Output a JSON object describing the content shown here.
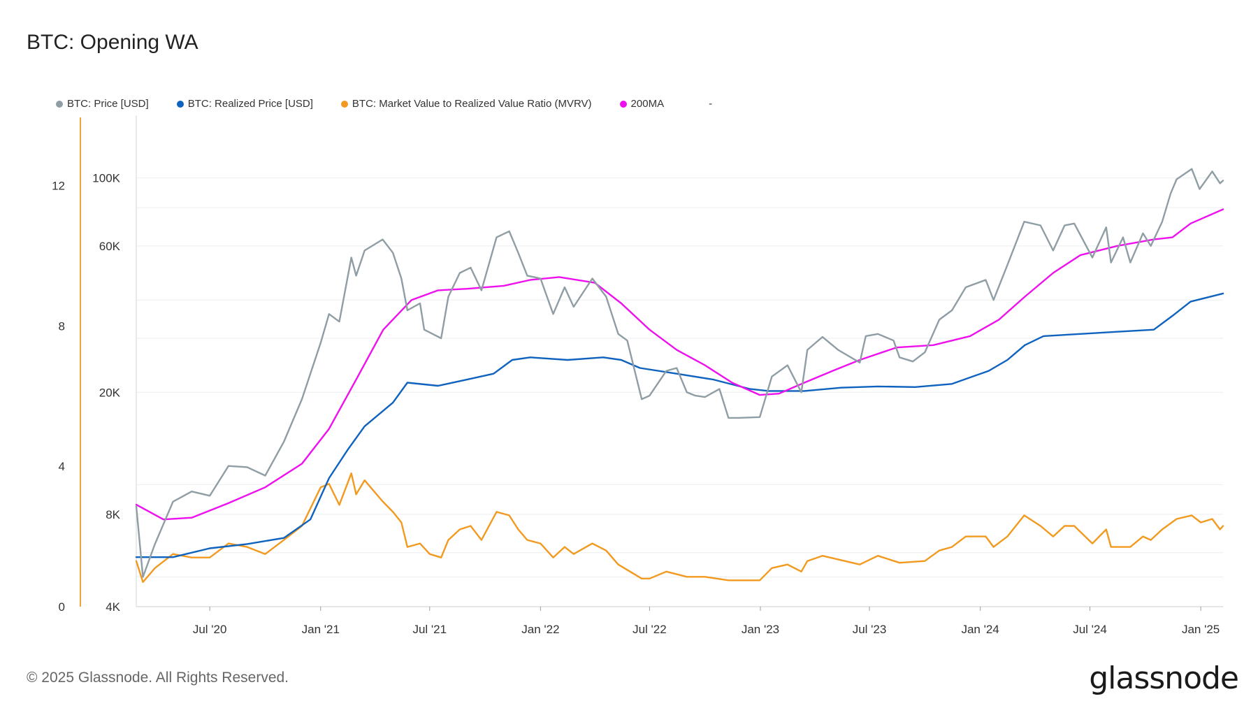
{
  "title": "BTC: Opening WA",
  "legend": [
    {
      "label": "BTC: Price [USD]",
      "color": "#8f9da4"
    },
    {
      "label": "BTC: Realized Price [USD]",
      "color": "#0f62be"
    },
    {
      "label": "BTC: Market Value to Realized Value Ratio (MVRV)",
      "color": "#f29a1f"
    },
    {
      "label": "200MA",
      "color": "#ee11ee"
    }
  ],
  "legend_extra": "-",
  "footer": "© 2025 Glassnode. All Rights Reserved.",
  "logo": "glassnode",
  "chart_data": {
    "type": "line",
    "title": "BTC: Opening WA",
    "x_tick_labels": [
      "Jul '20",
      "Jan '21",
      "Jul '21",
      "Jan '22",
      "Jul '22",
      "Jan '23",
      "Jul '23",
      "Jan '24",
      "Jul '24",
      "Jan '25"
    ],
    "x_tick_dates": [
      "2020-07-01",
      "2021-01-01",
      "2021-07-01",
      "2022-01-01",
      "2022-07-01",
      "2023-01-01",
      "2023-07-01",
      "2024-01-01",
      "2024-07-01",
      "2025-01-01"
    ],
    "x_range": [
      "2020-03-01",
      "2025-02-07"
    ],
    "y_left": {
      "label": "",
      "ticks": [
        "0",
        "4",
        "8",
        "12"
      ],
      "range": [
        0,
        14
      ],
      "scale": "linear",
      "series": [
        "BTC: Market Value to Realized Value Ratio (MVRV)"
      ]
    },
    "y_right": {
      "label": "",
      "ticks": [
        "4K",
        "8K",
        "20K",
        "60K",
        "100K"
      ],
      "range": [
        4000,
        160000
      ],
      "scale": "log",
      "series": [
        "BTC: Price [USD]",
        "BTC: Realized Price [USD]",
        "200MA"
      ]
    },
    "grid": true,
    "legend_position": "top-left",
    "series": [
      {
        "name": "BTC: Price [USD]",
        "color": "#8f9da4",
        "axis": "right",
        "points": [
          [
            "2020-03-01",
            8500
          ],
          [
            "2020-03-12",
            5000
          ],
          [
            "2020-04-01",
            6400
          ],
          [
            "2020-05-01",
            8800
          ],
          [
            "2020-06-01",
            9500
          ],
          [
            "2020-07-01",
            9200
          ],
          [
            "2020-08-01",
            11500
          ],
          [
            "2020-09-01",
            11400
          ],
          [
            "2020-10-01",
            10700
          ],
          [
            "2020-11-01",
            13800
          ],
          [
            "2020-12-01",
            19000
          ],
          [
            "2021-01-01",
            29000
          ],
          [
            "2021-01-15",
            36000
          ],
          [
            "2021-02-01",
            34000
          ],
          [
            "2021-02-21",
            55000
          ],
          [
            "2021-03-01",
            48000
          ],
          [
            "2021-03-15",
            58000
          ],
          [
            "2021-04-14",
            63000
          ],
          [
            "2021-05-01",
            57000
          ],
          [
            "2021-05-15",
            47000
          ],
          [
            "2021-05-25",
            37000
          ],
          [
            "2021-06-15",
            39000
          ],
          [
            "2021-06-22",
            32000
          ],
          [
            "2021-07-20",
            30000
          ],
          [
            "2021-08-01",
            41000
          ],
          [
            "2021-08-20",
            49000
          ],
          [
            "2021-09-07",
            51000
          ],
          [
            "2021-09-25",
            43000
          ],
          [
            "2021-10-20",
            64000
          ],
          [
            "2021-11-10",
            67000
          ],
          [
            "2021-11-25",
            57000
          ],
          [
            "2021-12-10",
            48000
          ],
          [
            "2022-01-01",
            47000
          ],
          [
            "2022-01-22",
            36000
          ],
          [
            "2022-02-10",
            44000
          ],
          [
            "2022-02-25",
            38000
          ],
          [
            "2022-03-28",
            47000
          ],
          [
            "2022-04-20",
            41000
          ],
          [
            "2022-05-10",
            31000
          ],
          [
            "2022-05-25",
            29500
          ],
          [
            "2022-06-18",
            19000
          ],
          [
            "2022-07-01",
            19500
          ],
          [
            "2022-07-29",
            23500
          ],
          [
            "2022-08-15",
            24000
          ],
          [
            "2022-09-01",
            20000
          ],
          [
            "2022-09-15",
            19500
          ],
          [
            "2022-10-01",
            19300
          ],
          [
            "2022-10-25",
            20500
          ],
          [
            "2022-11-09",
            16500
          ],
          [
            "2022-11-25",
            16500
          ],
          [
            "2022-12-31",
            16600
          ],
          [
            "2023-01-20",
            22500
          ],
          [
            "2023-02-15",
            24500
          ],
          [
            "2023-03-10",
            20000
          ],
          [
            "2023-03-20",
            27500
          ],
          [
            "2023-04-14",
            30300
          ],
          [
            "2023-05-10",
            27500
          ],
          [
            "2023-06-15",
            25000
          ],
          [
            "2023-06-25",
            30500
          ],
          [
            "2023-07-15",
            31000
          ],
          [
            "2023-08-10",
            29500
          ],
          [
            "2023-08-20",
            26000
          ],
          [
            "2023-09-11",
            25200
          ],
          [
            "2023-10-01",
            27000
          ],
          [
            "2023-10-25",
            34500
          ],
          [
            "2023-11-15",
            37000
          ],
          [
            "2023-12-08",
            44000
          ],
          [
            "2024-01-10",
            46500
          ],
          [
            "2024-01-23",
            40000
          ],
          [
            "2024-02-15",
            52000
          ],
          [
            "2024-03-14",
            72000
          ],
          [
            "2024-04-10",
            70000
          ],
          [
            "2024-05-01",
            58000
          ],
          [
            "2024-05-20",
            70000
          ],
          [
            "2024-06-05",
            71000
          ],
          [
            "2024-07-05",
            55000
          ],
          [
            "2024-07-28",
            69000
          ],
          [
            "2024-08-05",
            53000
          ],
          [
            "2024-08-25",
            64000
          ],
          [
            "2024-09-06",
            53000
          ],
          [
            "2024-09-27",
            66000
          ],
          [
            "2024-10-10",
            60000
          ],
          [
            "2024-10-29",
            72000
          ],
          [
            "2024-11-12",
            89000
          ],
          [
            "2024-11-22",
            99000
          ],
          [
            "2024-12-17",
            107000
          ],
          [
            "2024-12-30",
            92000
          ],
          [
            "2025-01-20",
            105000
          ],
          [
            "2025-02-02",
            96000
          ],
          [
            "2025-02-07",
            98000
          ]
        ]
      },
      {
        "name": "BTC: Realized Price [USD]",
        "color": "#0f62be",
        "axis": "right",
        "points": [
          [
            "2020-03-01",
            5800
          ],
          [
            "2020-05-01",
            5800
          ],
          [
            "2020-07-01",
            6200
          ],
          [
            "2020-09-01",
            6400
          ],
          [
            "2020-11-01",
            6700
          ],
          [
            "2020-12-15",
            7700
          ],
          [
            "2021-01-15",
            10500
          ],
          [
            "2021-02-15",
            13000
          ],
          [
            "2021-03-15",
            15500
          ],
          [
            "2021-05-01",
            18500
          ],
          [
            "2021-05-25",
            21500
          ],
          [
            "2021-07-15",
            21000
          ],
          [
            "2021-09-01",
            22000
          ],
          [
            "2021-10-15",
            23000
          ],
          [
            "2021-11-15",
            25500
          ],
          [
            "2021-12-15",
            26000
          ],
          [
            "2022-02-15",
            25500
          ],
          [
            "2022-04-15",
            26000
          ],
          [
            "2022-05-15",
            25500
          ],
          [
            "2022-06-15",
            24000
          ],
          [
            "2022-08-15",
            23000
          ],
          [
            "2022-10-15",
            22000
          ],
          [
            "2022-12-15",
            20500
          ],
          [
            "2023-01-15",
            20200
          ],
          [
            "2023-03-15",
            20200
          ],
          [
            "2023-05-15",
            20700
          ],
          [
            "2023-07-15",
            20900
          ],
          [
            "2023-09-15",
            20800
          ],
          [
            "2023-11-15",
            21300
          ],
          [
            "2024-01-15",
            23500
          ],
          [
            "2024-02-15",
            25500
          ],
          [
            "2024-03-15",
            28500
          ],
          [
            "2024-04-15",
            30500
          ],
          [
            "2024-06-15",
            31000
          ],
          [
            "2024-08-15",
            31500
          ],
          [
            "2024-10-15",
            32000
          ],
          [
            "2024-11-15",
            35500
          ],
          [
            "2024-12-15",
            39500
          ],
          [
            "2025-02-07",
            42000
          ]
        ]
      },
      {
        "name": "BTC: Market Value to Realized Value Ratio (MVRV)",
        "color": "#f29a1f",
        "axis": "left",
        "points": [
          [
            "2020-03-01",
            1.3
          ],
          [
            "2020-03-12",
            0.7
          ],
          [
            "2020-04-01",
            1.1
          ],
          [
            "2020-05-01",
            1.5
          ],
          [
            "2020-06-01",
            1.4
          ],
          [
            "2020-07-01",
            1.4
          ],
          [
            "2020-08-01",
            1.8
          ],
          [
            "2020-09-01",
            1.7
          ],
          [
            "2020-10-01",
            1.5
          ],
          [
            "2020-11-01",
            1.9
          ],
          [
            "2020-12-01",
            2.3
          ],
          [
            "2021-01-01",
            3.4
          ],
          [
            "2021-01-15",
            3.5
          ],
          [
            "2021-02-01",
            2.9
          ],
          [
            "2021-02-21",
            3.8
          ],
          [
            "2021-03-01",
            3.2
          ],
          [
            "2021-03-15",
            3.6
          ],
          [
            "2021-04-14",
            3.0
          ],
          [
            "2021-05-01",
            2.7
          ],
          [
            "2021-05-15",
            2.4
          ],
          [
            "2021-05-25",
            1.7
          ],
          [
            "2021-06-15",
            1.8
          ],
          [
            "2021-07-01",
            1.5
          ],
          [
            "2021-07-20",
            1.4
          ],
          [
            "2021-08-01",
            1.9
          ],
          [
            "2021-08-20",
            2.2
          ],
          [
            "2021-09-07",
            2.3
          ],
          [
            "2021-09-25",
            1.9
          ],
          [
            "2021-10-20",
            2.7
          ],
          [
            "2021-11-10",
            2.6
          ],
          [
            "2021-11-25",
            2.2
          ],
          [
            "2021-12-10",
            1.9
          ],
          [
            "2022-01-01",
            1.8
          ],
          [
            "2022-01-22",
            1.4
          ],
          [
            "2022-02-10",
            1.7
          ],
          [
            "2022-02-25",
            1.5
          ],
          [
            "2022-03-28",
            1.8
          ],
          [
            "2022-04-20",
            1.6
          ],
          [
            "2022-05-10",
            1.2
          ],
          [
            "2022-06-18",
            0.8
          ],
          [
            "2022-07-01",
            0.8
          ],
          [
            "2022-07-29",
            1.0
          ],
          [
            "2022-09-01",
            0.85
          ],
          [
            "2022-10-01",
            0.85
          ],
          [
            "2022-11-09",
            0.75
          ],
          [
            "2022-12-31",
            0.75
          ],
          [
            "2023-01-20",
            1.1
          ],
          [
            "2023-02-15",
            1.2
          ],
          [
            "2023-03-10",
            1.0
          ],
          [
            "2023-03-20",
            1.3
          ],
          [
            "2023-04-14",
            1.45
          ],
          [
            "2023-06-15",
            1.2
          ],
          [
            "2023-07-15",
            1.45
          ],
          [
            "2023-08-20",
            1.25
          ],
          [
            "2023-10-01",
            1.3
          ],
          [
            "2023-10-25",
            1.6
          ],
          [
            "2023-11-15",
            1.7
          ],
          [
            "2023-12-08",
            2.0
          ],
          [
            "2024-01-10",
            2.0
          ],
          [
            "2024-01-23",
            1.7
          ],
          [
            "2024-02-15",
            2.0
          ],
          [
            "2024-03-14",
            2.6
          ],
          [
            "2024-04-10",
            2.3
          ],
          [
            "2024-05-01",
            2.0
          ],
          [
            "2024-05-20",
            2.3
          ],
          [
            "2024-06-05",
            2.3
          ],
          [
            "2024-07-05",
            1.8
          ],
          [
            "2024-07-28",
            2.2
          ],
          [
            "2024-08-05",
            1.7
          ],
          [
            "2024-09-06",
            1.7
          ],
          [
            "2024-09-27",
            2.0
          ],
          [
            "2024-10-10",
            1.9
          ],
          [
            "2024-10-29",
            2.2
          ],
          [
            "2024-11-22",
            2.5
          ],
          [
            "2024-12-17",
            2.6
          ],
          [
            "2025-01-01",
            2.4
          ],
          [
            "2025-01-20",
            2.5
          ],
          [
            "2025-02-02",
            2.2
          ],
          [
            "2025-02-07",
            2.3
          ]
        ]
      },
      {
        "name": "200MA",
        "color": "#ee11ee",
        "axis": "right",
        "points": [
          [
            "2020-03-01",
            8600
          ],
          [
            "2020-04-15",
            7700
          ],
          [
            "2020-06-01",
            7800
          ],
          [
            "2020-08-01",
            8700
          ],
          [
            "2020-10-01",
            9800
          ],
          [
            "2020-12-01",
            11700
          ],
          [
            "2021-01-15",
            15200
          ],
          [
            "2021-03-01",
            22000
          ],
          [
            "2021-04-15",
            32000
          ],
          [
            "2021-06-01",
            40000
          ],
          [
            "2021-07-15",
            43000
          ],
          [
            "2021-09-01",
            43500
          ],
          [
            "2021-11-01",
            44500
          ],
          [
            "2021-12-15",
            46500
          ],
          [
            "2022-02-01",
            47500
          ],
          [
            "2022-04-01",
            45500
          ],
          [
            "2022-05-15",
            39000
          ],
          [
            "2022-07-01",
            32000
          ],
          [
            "2022-08-15",
            27500
          ],
          [
            "2022-10-01",
            24500
          ],
          [
            "2022-11-15",
            21500
          ],
          [
            "2022-12-31",
            19600
          ],
          [
            "2023-02-01",
            19800
          ],
          [
            "2023-03-15",
            21500
          ],
          [
            "2023-05-01",
            23500
          ],
          [
            "2023-06-15",
            25500
          ],
          [
            "2023-08-15",
            28000
          ],
          [
            "2023-10-15",
            28500
          ],
          [
            "2023-12-15",
            30500
          ],
          [
            "2024-02-01",
            34500
          ],
          [
            "2024-03-15",
            41000
          ],
          [
            "2024-05-01",
            49000
          ],
          [
            "2024-06-15",
            56000
          ],
          [
            "2024-08-15",
            60000
          ],
          [
            "2024-10-15",
            63000
          ],
          [
            "2024-11-15",
            64000
          ],
          [
            "2024-12-15",
            71000
          ],
          [
            "2025-02-07",
            79000
          ]
        ]
      }
    ]
  }
}
